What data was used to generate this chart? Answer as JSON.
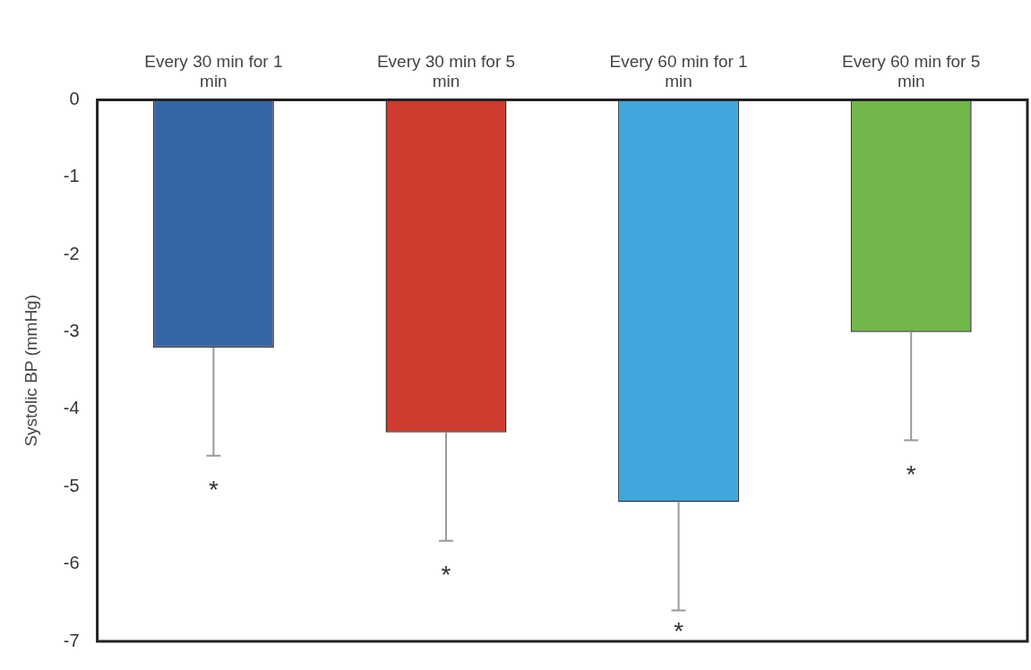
{
  "chart_data": {
    "type": "bar",
    "ylabel": "Systolic BP (mmHg)",
    "categories": [
      "Every 30 min for 1 min",
      "Every 30 min for 5 min",
      "Every 60 min for 1 min",
      "Every 60 min for 5 min"
    ],
    "values": [
      -3.2,
      -4.3,
      -5.2,
      -3.0
    ],
    "colors": [
      "#3565a5",
      "#cf3b2c",
      "#3fa7db",
      "#72b74a"
    ],
    "errors": [
      [
        -4.6,
        -3.2
      ],
      [
        -5.7,
        -4.3
      ],
      [
        -6.6,
        -5.2
      ],
      [
        -4.4,
        -3.0
      ]
    ],
    "ylim": [
      -7,
      0
    ],
    "yticks": [
      -7,
      -6,
      -5,
      -4,
      -3,
      -2,
      -1,
      0
    ],
    "grid": false,
    "legend": false,
    "annotations": [
      "*",
      "*",
      "*",
      "*"
    ]
  }
}
